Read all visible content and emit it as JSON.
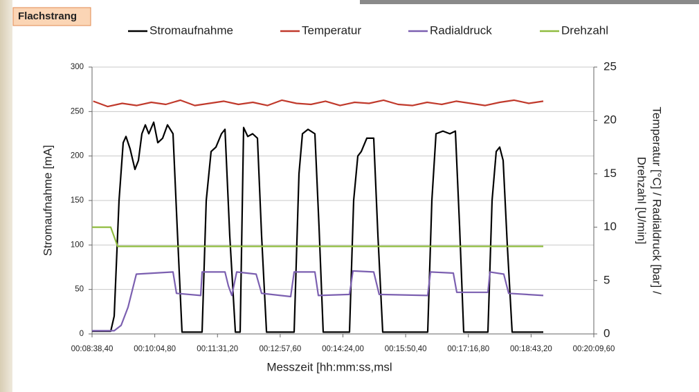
{
  "chart_data": {
    "type": "line",
    "title": "Flachstrang",
    "x_label": "Messzeit [hh:mm:ss,msl",
    "y_label": "Stromaufnahme [mA]",
    "y2_label": [
      "Temperatur [°C] / Radialdruck [bar] /",
      "Drehzahl [U/min]"
    ],
    "xlim": [
      518.4,
      1209.6
    ],
    "xticks": [
      {
        "value": 518.4,
        "label": "00:08:38,40"
      },
      {
        "value": 604.8,
        "label": "00:10:04,80"
      },
      {
        "value": 691.2,
        "label": "00:11:31,20"
      },
      {
        "value": 777.6,
        "label": "00:12:57,60"
      },
      {
        "value": 864.0,
        "label": "00:14:24,00"
      },
      {
        "value": 950.4,
        "label": "00:15:50,40"
      },
      {
        "value": 1036.8,
        "label": "00:17:16,80"
      },
      {
        "value": 1123.2,
        "label": "00:18:43,20"
      },
      {
        "value": 1209.6,
        "label": "00:20:09,60"
      }
    ],
    "ylim": [
      0,
      300
    ],
    "yticks": [
      0,
      50,
      100,
      150,
      200,
      250,
      300
    ],
    "y2lim": [
      0,
      25
    ],
    "y2ticks": [
      0,
      5,
      10,
      15,
      20,
      25
    ],
    "grid": true,
    "series": [
      {
        "name": "Stromaufnahme",
        "color": "#000000",
        "x": [
          518.4,
          544.1,
          548.9,
          555.6,
          561.3,
          565.1,
          570.8,
          577.5,
          582.3,
          587.0,
          591.8,
          596.6,
          603.3,
          609.0,
          615.6,
          622.3,
          629.9,
          635.7,
          642.3,
          670.0,
          675.7,
          682.4,
          689.1,
          696.7,
          701.5,
          708.1,
          715.8,
          722.4,
          727.2,
          732.9,
          739.6,
          746.3,
          752.0,
          758.7,
          796.8,
          803.5,
          808.2,
          815.9,
          825.4,
          831.1,
          836.8,
          873.1,
          878.8,
          884.5,
          889.3,
          896.9,
          906.4,
          912.2,
          918.8,
          980.8,
          986.5,
          992.2,
          1001.8,
          1011.3,
          1018.9,
          1024.7,
          1030.4,
          1063.7,
          1069.5,
          1075.2,
          1079.9,
          1084.7,
          1090.4,
          1097.1,
          1140.0
        ],
        "values": [
          3,
          3,
          20,
          150,
          215,
          222,
          208,
          185,
          195,
          225,
          235,
          225,
          238,
          215,
          220,
          235,
          225,
          120,
          2,
          2,
          150,
          205,
          210,
          225,
          230,
          110,
          2,
          2,
          232,
          222,
          225,
          220,
          110,
          2,
          2,
          180,
          225,
          230,
          225,
          120,
          2,
          2,
          150,
          200,
          205,
          220,
          220,
          110,
          2,
          2,
          150,
          225,
          228,
          225,
          228,
          120,
          2,
          2,
          150,
          205,
          210,
          195,
          100,
          2,
          2
        ]
      },
      {
        "name": "Temperatur",
        "color": "#c0392b",
        "axis": "y2",
        "x": [
          520,
          540,
          560,
          580,
          600,
          620,
          640,
          660,
          680,
          700,
          720,
          740,
          760,
          780,
          800,
          820,
          840,
          860,
          880,
          900,
          920,
          940,
          960,
          980,
          1000,
          1020,
          1040,
          1060,
          1080,
          1100,
          1120,
          1140
        ],
        "values": [
          21.8,
          21.3,
          21.6,
          21.4,
          21.7,
          21.5,
          21.9,
          21.4,
          21.6,
          21.8,
          21.5,
          21.7,
          21.4,
          21.9,
          21.6,
          21.5,
          21.8,
          21.4,
          21.7,
          21.6,
          21.9,
          21.5,
          21.4,
          21.7,
          21.5,
          21.8,
          21.6,
          21.4,
          21.7,
          21.9,
          21.6,
          21.8
        ]
      },
      {
        "name": "Radialdruck",
        "color": "#7b5fb0",
        "axis": "y2",
        "x": [
          518.4,
          548.9,
          558.4,
          568.0,
          579.4,
          629.9,
          634.7,
          668.1,
          670.0,
          701.5,
          706.2,
          711.0,
          717.7,
          744.4,
          752.0,
          792.0,
          796.8,
          825.4,
          830.2,
          873.1,
          877.8,
          906.4,
          914.0,
          980.8,
          984.6,
          1016.1,
          1020.8,
          1063.7,
          1066.6,
          1085.6,
          1092.3,
          1140.0
        ],
        "values": [
          0.3,
          0.3,
          0.8,
          2.5,
          5.6,
          5.8,
          3.8,
          3.6,
          5.8,
          5.8,
          4.5,
          3.6,
          5.8,
          5.6,
          3.8,
          3.5,
          5.8,
          5.8,
          3.6,
          3.7,
          5.9,
          5.8,
          3.7,
          3.6,
          5.8,
          5.7,
          3.9,
          3.9,
          5.8,
          5.6,
          3.8,
          3.6
        ]
      },
      {
        "name": "Drehzahl",
        "color": "#8fbc3f",
        "axis": "y2",
        "x": [
          518.4,
          544.1,
          553.7,
          1140.0
        ],
        "values": [
          10.0,
          10.0,
          8.2,
          8.2
        ]
      }
    ]
  }
}
